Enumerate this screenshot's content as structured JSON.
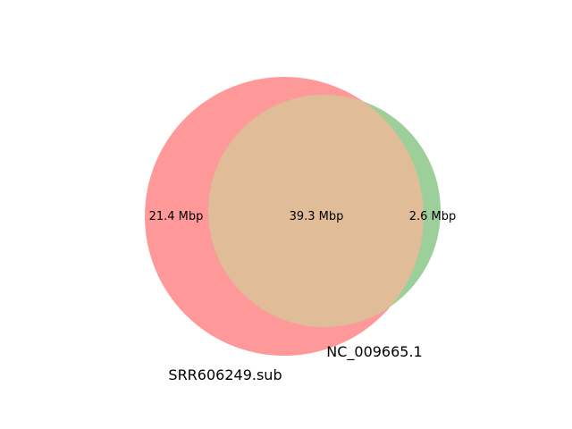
{
  "diagram": {
    "type": "venn2",
    "sets": [
      {
        "name": "SRR606249.sub",
        "only_label": "21.4 Mbp",
        "color": "#ff9999"
      },
      {
        "name": "NC_009665.1",
        "only_label": "2.6 Mbp",
        "color": "#9ccf9a"
      }
    ],
    "intersection_label": "39.3 Mbp",
    "intersection_color": "#e0bc98"
  }
}
